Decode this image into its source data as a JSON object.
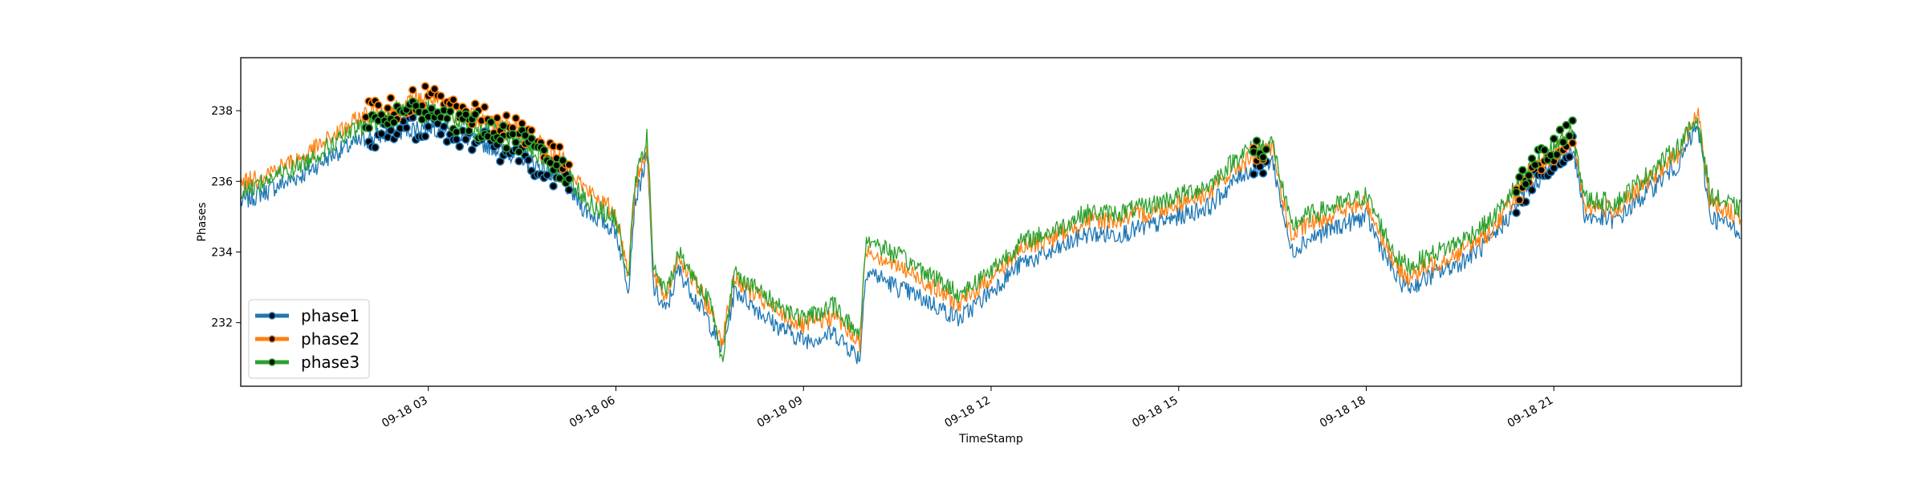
{
  "chart_data": {
    "type": "line",
    "title": "",
    "xlabel": "TimeStamp",
    "ylabel": "Phases",
    "x_range": [
      "09-18 00:00",
      "23:59"
    ],
    "ylim": [
      230.2,
      239.5
    ],
    "grid": false,
    "legend_position": "bottom-left",
    "x_tick_labels": [
      "09-18 03",
      "09-18 06",
      "09-18 09",
      "09-18 12",
      "09-18 15",
      "09-18 18",
      "09-18 21"
    ],
    "x_tick_hours": [
      3,
      6,
      9,
      12,
      15,
      18,
      21
    ],
    "y_ticks": [
      232,
      234,
      236,
      238
    ],
    "marker_segments_hours": [
      [
        2.0,
        5.25
      ],
      [
        16.2,
        16.45
      ],
      [
        20.4,
        21.35
      ]
    ],
    "series": [
      {
        "name": "phase1",
        "color": "#1f77b4",
        "x_hours": [
          0,
          0.5,
          1,
          1.5,
          2,
          2.5,
          3,
          3.5,
          4,
          4.5,
          5,
          5.25,
          5.5,
          6,
          6.2,
          6.3,
          6.5,
          6.6,
          6.8,
          7,
          7.5,
          7.7,
          7.9,
          8,
          8.5,
          9,
          9.5,
          9.9,
          10,
          10.5,
          11,
          11.5,
          12,
          12.5,
          13,
          13.5,
          14,
          14.5,
          15,
          15.5,
          16,
          16.5,
          16.8,
          17,
          17.5,
          18,
          18.5,
          18.7,
          19,
          19.5,
          20,
          20.5,
          21,
          21.3,
          21.5,
          22,
          22.5,
          23,
          23.3,
          23.5,
          23.99
        ],
        "values": [
          235.4,
          235.8,
          236.2,
          236.8,
          237.2,
          237.4,
          237.6,
          237.3,
          237.0,
          236.7,
          236.2,
          235.8,
          235.2,
          234.6,
          233.0,
          235.4,
          236.7,
          233.0,
          232.3,
          233.5,
          232.0,
          231.2,
          232.9,
          232.8,
          232.0,
          231.5,
          231.7,
          231.0,
          233.5,
          233.0,
          232.6,
          232.1,
          232.9,
          233.7,
          234.0,
          234.5,
          234.5,
          234.7,
          235.0,
          235.3,
          236.2,
          236.6,
          234.0,
          234.3,
          234.7,
          235.0,
          233.2,
          233.0,
          233.3,
          233.7,
          234.3,
          235.6,
          236.5,
          237.0,
          235.0,
          234.9,
          235.7,
          236.5,
          237.6,
          235.0,
          234.6
        ]
      },
      {
        "name": "phase2",
        "color": "#ff7f0e",
        "x_hours": [
          0,
          0.5,
          1,
          1.5,
          2,
          2.5,
          3,
          3.5,
          4,
          4.5,
          5,
          5.25,
          5.5,
          6,
          6.2,
          6.3,
          6.5,
          6.6,
          6.8,
          7,
          7.5,
          7.7,
          7.9,
          8,
          8.5,
          9,
          9.5,
          9.9,
          10,
          10.5,
          11,
          11.5,
          12,
          12.5,
          13,
          13.5,
          14,
          14.5,
          15,
          15.5,
          16,
          16.5,
          16.8,
          17,
          17.5,
          18,
          18.5,
          18.7,
          19,
          19.5,
          20,
          20.5,
          21,
          21.3,
          21.5,
          22,
          22.5,
          23,
          23.3,
          23.5,
          23.99
        ],
        "values": [
          235.9,
          236.3,
          236.7,
          237.3,
          237.9,
          238.1,
          238.4,
          238.0,
          237.7,
          237.4,
          236.8,
          236.4,
          235.8,
          235.1,
          233.4,
          235.8,
          237.0,
          233.3,
          232.7,
          233.9,
          232.4,
          231.5,
          233.3,
          233.1,
          232.4,
          231.9,
          232.2,
          231.4,
          234.1,
          233.6,
          233.1,
          232.5,
          233.3,
          234.1,
          234.4,
          234.9,
          234.9,
          235.1,
          235.4,
          235.7,
          236.5,
          236.9,
          234.4,
          234.7,
          235.1,
          235.4,
          233.5,
          233.3,
          233.6,
          234.0,
          234.6,
          235.9,
          236.8,
          237.3,
          235.3,
          235.2,
          236.0,
          236.8,
          238.0,
          235.4,
          235.0
        ]
      },
      {
        "name": "phase3",
        "color": "#2ca02c",
        "x_hours": [
          0,
          0.5,
          1,
          1.5,
          2,
          2.5,
          3,
          3.5,
          4,
          4.5,
          5,
          5.25,
          5.5,
          6,
          6.2,
          6.3,
          6.5,
          6.6,
          6.8,
          7,
          7.5,
          7.7,
          7.9,
          8,
          8.5,
          9,
          9.5,
          9.9,
          10,
          10.5,
          11,
          11.5,
          12,
          12.5,
          13,
          13.5,
          14,
          14.5,
          15,
          15.5,
          16,
          16.5,
          16.8,
          17,
          17.5,
          18,
          18.5,
          18.7,
          19,
          19.5,
          20,
          20.5,
          21,
          21.3,
          21.5,
          22,
          22.5,
          23,
          23.3,
          23.5,
          23.99
        ],
        "values": [
          235.7,
          236.1,
          236.5,
          237.1,
          237.6,
          237.9,
          238.1,
          237.7,
          237.4,
          237.1,
          236.5,
          236.1,
          235.5,
          234.9,
          233.3,
          235.9,
          237.3,
          233.6,
          232.8,
          234.0,
          232.6,
          231.0,
          233.5,
          233.3,
          232.6,
          232.1,
          232.5,
          231.6,
          234.4,
          233.9,
          233.4,
          232.8,
          233.5,
          234.3,
          234.6,
          235.1,
          235.1,
          235.3,
          235.6,
          235.9,
          236.8,
          237.1,
          234.7,
          235.0,
          235.3,
          235.6,
          233.8,
          233.6,
          233.9,
          234.3,
          234.9,
          236.1,
          237.0,
          237.4,
          235.5,
          235.4,
          236.2,
          237.0,
          237.8,
          235.6,
          235.2
        ]
      }
    ]
  }
}
